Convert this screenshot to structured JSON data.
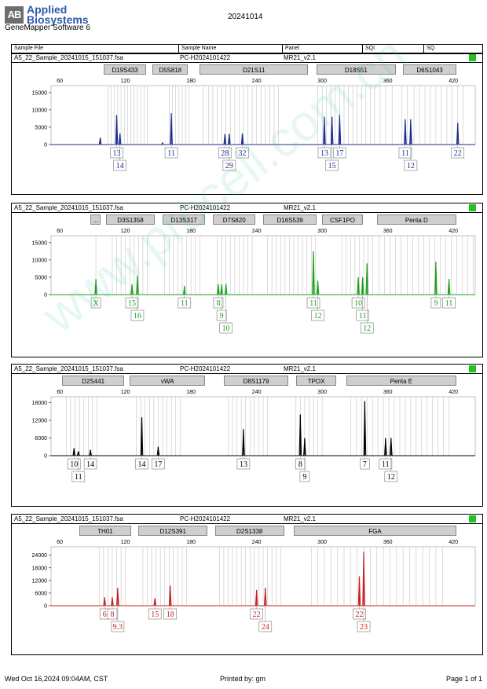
{
  "header": {
    "logo_mark": "AB",
    "brand_line1": "Applied",
    "brand_line2": "Biosystems",
    "software": "GeneMapper Software 6",
    "run_date": "20241014"
  },
  "columns": {
    "sample_file": "Sample File",
    "sample_name": "Sample Name",
    "panel": "Panel",
    "sqi": "SQI",
    "sq": "SQ"
  },
  "footer": {
    "printed_on": "Wed Oct 16,2024 09:04AM, CST",
    "printed_by": "Printed by: gm",
    "page": "Page 1 of 1"
  },
  "watermark": "www.procell.com.cn",
  "chart_data": [
    {
      "type": "line",
      "sample_file": "A5_22_Sample_20241015_151037.fsa",
      "sample_name": "PC-H2024101422",
      "panel": "MR21_v2.1",
      "color": "#1c2b8f",
      "xlim": [
        52,
        440
      ],
      "x_ticks": [
        60,
        120,
        180,
        240,
        300,
        360,
        420
      ],
      "ylim": [
        0,
        17000
      ],
      "y_ticks": [
        0,
        5000,
        10000,
        15000
      ],
      "loci": [
        {
          "name": "D19S433",
          "start": 100,
          "end": 142
        },
        {
          "name": "D5S818",
          "start": 145,
          "end": 180
        },
        {
          "name": "D21S11",
          "start": 188,
          "end": 290
        },
        {
          "name": "D18S51",
          "start": 295,
          "end": 370
        },
        {
          "name": "D6S1043",
          "start": 374,
          "end": 448
        }
      ],
      "peaks": [
        {
          "x": 97,
          "y": 2000
        },
        {
          "x": 112,
          "y": 8500
        },
        {
          "x": 115,
          "y": 3200
        },
        {
          "x": 154,
          "y": 500
        },
        {
          "x": 162,
          "y": 9000
        },
        {
          "x": 211,
          "y": 3000
        },
        {
          "x": 215,
          "y": 3100
        },
        {
          "x": 227,
          "y": 3200
        },
        {
          "x": 302,
          "y": 8000
        },
        {
          "x": 309,
          "y": 8000
        },
        {
          "x": 316,
          "y": 8500
        },
        {
          "x": 376,
          "y": 7300
        },
        {
          "x": 381,
          "y": 7300
        },
        {
          "x": 424,
          "y": 6200
        }
      ],
      "bins": [
        104,
        107,
        110,
        113,
        116,
        119,
        122,
        125,
        128,
        131,
        134,
        137,
        140,
        160,
        163,
        166,
        169,
        172,
        175,
        178,
        191,
        196,
        200,
        204,
        208,
        212,
        216,
        220,
        224,
        228,
        232,
        236,
        240,
        244,
        248,
        252,
        256,
        260,
        296,
        300,
        304,
        308,
        312,
        316,
        320,
        324,
        328,
        332,
        336,
        340,
        344,
        348,
        353,
        358,
        364,
        373,
        378,
        384,
        389,
        394,
        399,
        404,
        409,
        414,
        419,
        424,
        429
      ],
      "labels": [
        {
          "x": 112,
          "text": "13",
          "row": 0
        },
        {
          "x": 115,
          "text": "14",
          "row": 1
        },
        {
          "x": 162,
          "text": "11",
          "row": 0
        },
        {
          "x": 211,
          "text": "28",
          "row": 0
        },
        {
          "x": 215,
          "text": "29",
          "row": 1
        },
        {
          "x": 227,
          "text": "32",
          "row": 0
        },
        {
          "x": 302,
          "text": "13",
          "row": 0
        },
        {
          "x": 309,
          "text": "15",
          "row": 1
        },
        {
          "x": 316,
          "text": "17",
          "row": 0
        },
        {
          "x": 376,
          "text": "11",
          "row": 0
        },
        {
          "x": 381,
          "text": "12",
          "row": 1
        },
        {
          "x": 424,
          "text": "22",
          "row": 0
        }
      ]
    },
    {
      "type": "line",
      "sample_file": "A5_22_Sample_20241015_151037.fsa",
      "sample_name": "PC-H2024101422",
      "panel": "MR21_v2.1",
      "color": "#1d9e1d",
      "xlim": [
        52,
        440
      ],
      "x_ticks": [
        60,
        120,
        180,
        240,
        300,
        360,
        420
      ],
      "ylim": [
        0,
        17000
      ],
      "y_ticks": [
        0,
        5000,
        10000,
        15000
      ],
      "loci": [
        {
          "name": "...",
          "start": 88,
          "end": 100
        },
        {
          "name": "D3S1358",
          "start": 102,
          "end": 150
        },
        {
          "name": "D13S317",
          "start": 154,
          "end": 196
        },
        {
          "name": "D7S820",
          "start": 200,
          "end": 242
        },
        {
          "name": "D16S539",
          "start": 246,
          "end": 298
        },
        {
          "name": "CSF1PO",
          "start": 300,
          "end": 340
        },
        {
          "name": "Penta D",
          "start": 350,
          "end": 440
        }
      ],
      "peaks": [
        {
          "x": 93,
          "y": 4500
        },
        {
          "x": 126,
          "y": 3000
        },
        {
          "x": 131,
          "y": 5500
        },
        {
          "x": 174,
          "y": 2500
        },
        {
          "x": 205,
          "y": 3000
        },
        {
          "x": 208,
          "y": 3000
        },
        {
          "x": 212,
          "y": 3000
        },
        {
          "x": 292,
          "y": 12500
        },
        {
          "x": 296,
          "y": 4000
        },
        {
          "x": 333,
          "y": 5000
        },
        {
          "x": 337,
          "y": 5000
        },
        {
          "x": 341,
          "y": 9000
        },
        {
          "x": 404,
          "y": 9500
        },
        {
          "x": 416,
          "y": 4500
        }
      ],
      "bins": [
        93,
        108,
        112,
        116,
        120,
        124,
        128,
        132,
        136,
        140,
        156,
        160,
        164,
        168,
        172,
        176,
        180,
        184,
        188,
        204,
        208,
        212,
        216,
        220,
        224,
        228,
        232,
        236,
        250,
        254,
        258,
        262,
        266,
        270,
        274,
        278,
        282,
        286,
        290,
        294,
        318,
        322,
        326,
        330,
        334,
        338,
        342,
        346,
        352,
        357,
        362,
        367,
        372,
        378,
        383,
        388,
        393,
        398,
        403,
        408,
        413,
        418,
        423,
        428,
        433,
        438
      ],
      "labels": [
        {
          "x": 93,
          "text": "X",
          "row": 0
        },
        {
          "x": 126,
          "text": "15",
          "row": 0
        },
        {
          "x": 131,
          "text": "16",
          "row": 1
        },
        {
          "x": 174,
          "text": "11",
          "row": 0
        },
        {
          "x": 205,
          "text": "8",
          "row": 0
        },
        {
          "x": 208,
          "text": "9",
          "row": 1
        },
        {
          "x": 212,
          "text": "10",
          "row": 2
        },
        {
          "x": 292,
          "text": "11",
          "row": 0
        },
        {
          "x": 296,
          "text": "12",
          "row": 1
        },
        {
          "x": 333,
          "text": "10",
          "row": 0
        },
        {
          "x": 337,
          "text": "11",
          "row": 1
        },
        {
          "x": 341,
          "text": "12",
          "row": 2
        },
        {
          "x": 404,
          "text": "9",
          "row": 0
        },
        {
          "x": 416,
          "text": "11",
          "row": 0
        }
      ]
    },
    {
      "type": "line",
      "sample_file": "A5_22_Sample_20241015_151037.fsa",
      "sample_name": "PC-H2024101422",
      "panel": "MR21_v2.1",
      "color": "#000000",
      "xlim": [
        52,
        440
      ],
      "x_ticks": [
        60,
        120,
        180,
        240,
        300,
        360,
        420
      ],
      "ylim": [
        0,
        20000
      ],
      "y_ticks": [
        0,
        6000,
        12000,
        18000
      ],
      "loci": [
        {
          "name": "D2S441",
          "start": 62,
          "end": 122
        },
        {
          "name": "vWA",
          "start": 124,
          "end": 196
        },
        {
          "name": "D8S1179",
          "start": 210,
          "end": 272
        },
        {
          "name": "TPOX",
          "start": 276,
          "end": 316
        },
        {
          "name": "Penta E",
          "start": 322,
          "end": 440
        }
      ],
      "peaks": [
        {
          "x": 73,
          "y": 2500
        },
        {
          "x": 77,
          "y": 1500
        },
        {
          "x": 88,
          "y": 2000
        },
        {
          "x": 135,
          "y": 13000
        },
        {
          "x": 150,
          "y": 3000
        },
        {
          "x": 228,
          "y": 9000
        },
        {
          "x": 280,
          "y": 14000
        },
        {
          "x": 284,
          "y": 6000
        },
        {
          "x": 339,
          "y": 18500
        },
        {
          "x": 358,
          "y": 6000
        },
        {
          "x": 363,
          "y": 6000
        }
      ],
      "bins": [
        66,
        70,
        74,
        78,
        82,
        86,
        90,
        94,
        130,
        134,
        138,
        142,
        146,
        150,
        154,
        158,
        162,
        166,
        170,
        214,
        218,
        222,
        226,
        230,
        234,
        238,
        242,
        246,
        250,
        276,
        280,
        284,
        288,
        292,
        296,
        300,
        326,
        331,
        336,
        341,
        346,
        351,
        356,
        361,
        366,
        371,
        376,
        381,
        386,
        391,
        396,
        401,
        406,
        411,
        416
      ],
      "labels": [
        {
          "x": 73,
          "text": "10",
          "row": 0
        },
        {
          "x": 77,
          "text": "11",
          "row": 1
        },
        {
          "x": 88,
          "text": "14",
          "row": 0
        },
        {
          "x": 135,
          "text": "14",
          "row": 0
        },
        {
          "x": 150,
          "text": "17",
          "row": 0
        },
        {
          "x": 228,
          "text": "13",
          "row": 0
        },
        {
          "x": 280,
          "text": "8",
          "row": 0
        },
        {
          "x": 284,
          "text": "9",
          "row": 1
        },
        {
          "x": 339,
          "text": "7",
          "row": 0
        },
        {
          "x": 358,
          "text": "11",
          "row": 0
        },
        {
          "x": 363,
          "text": "12",
          "row": 1
        }
      ]
    },
    {
      "type": "line",
      "sample_file": "A5_22_Sample_20241015_151037.fsa",
      "sample_name": "PC-H2024101422",
      "panel": "MR21_v2.1",
      "color": "#c42020",
      "xlim": [
        52,
        440
      ],
      "x_ticks": [
        60,
        120,
        180,
        240,
        300,
        360,
        420
      ],
      "ylim": [
        0,
        28000
      ],
      "y_ticks": [
        0,
        6000,
        12000,
        18000,
        24000
      ],
      "loci": [
        {
          "name": "TH01",
          "start": 78,
          "end": 128
        },
        {
          "name": "D12S391",
          "start": 132,
          "end": 198
        },
        {
          "name": "D2S1338",
          "start": 202,
          "end": 268
        },
        {
          "name": "FGA",
          "start": 274,
          "end": 440
        }
      ],
      "peaks": [
        {
          "x": 101,
          "y": 4000
        },
        {
          "x": 108,
          "y": 4000
        },
        {
          "x": 113,
          "y": 8500
        },
        {
          "x": 147,
          "y": 3500
        },
        {
          "x": 161,
          "y": 9500
        },
        {
          "x": 240,
          "y": 7500
        },
        {
          "x": 248,
          "y": 8500
        },
        {
          "x": 334,
          "y": 14000
        },
        {
          "x": 338,
          "y": 25500
        }
      ],
      "bins": [
        96,
        100,
        104,
        108,
        112,
        116,
        120,
        136,
        140,
        144,
        148,
        152,
        156,
        160,
        164,
        168,
        172,
        176,
        206,
        210,
        214,
        218,
        222,
        226,
        230,
        234,
        238,
        242,
        246,
        250,
        254,
        258,
        262,
        290,
        296,
        302,
        308,
        314,
        320,
        326,
        332,
        338,
        344,
        350,
        356,
        362,
        368,
        374,
        380,
        386,
        392,
        398,
        404,
        410
      ],
      "labels": [
        {
          "x": 101,
          "text": "6",
          "row": 0
        },
        {
          "x": 108,
          "text": "8",
          "row": 0
        },
        {
          "x": 113,
          "text": "9.3",
          "row": 1
        },
        {
          "x": 147,
          "text": "15",
          "row": 0
        },
        {
          "x": 161,
          "text": "18",
          "row": 0
        },
        {
          "x": 240,
          "text": "22",
          "row": 0
        },
        {
          "x": 248,
          "text": "24",
          "row": 1
        },
        {
          "x": 334,
          "text": "22",
          "row": 0
        },
        {
          "x": 338,
          "text": "23",
          "row": 1
        }
      ]
    }
  ]
}
